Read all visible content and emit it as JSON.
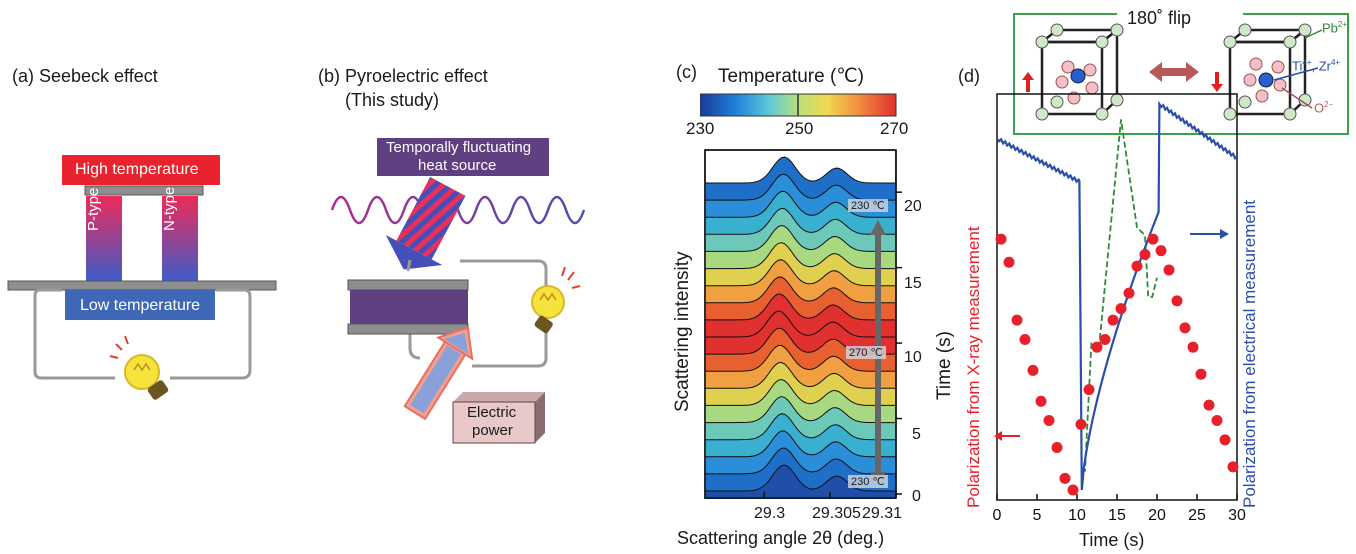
{
  "panel_a": {
    "title": "(a) Seebeck effect",
    "high": "High temperature",
    "low": "Low temperature",
    "p_type": "P-type",
    "n_type": "N-type"
  },
  "panel_b": {
    "title_line1": "(b) Pyroelectric effect",
    "title_line2": "(This study)",
    "heat_line1": "Temporally fluctuating",
    "heat_line2": "heat source",
    "power_line1": "Electric",
    "power_line2": "power"
  },
  "panel_c": {
    "tag": "(c)",
    "colorbar_title": "Temperature (℃)",
    "colorbar_ticks": [
      "230",
      "250",
      "270"
    ],
    "ylabel": "Scattering intensity",
    "xlabel": "Scattering angle 2θ (deg.)",
    "x_ticks": [
      "29.3",
      "29.305",
      "29.31"
    ],
    "time_label": "Time (s)",
    "time_ticks": [
      "0",
      "5",
      "10",
      "15",
      "20"
    ],
    "annot_top": "230 ℃",
    "annot_mid": "270 ℃",
    "annot_bot": "230 ℃"
  },
  "panel_d": {
    "tag": "(d)",
    "flip_label": "180˚ flip",
    "ion_pb": "Pb",
    "ion_pb_sup": "2+",
    "ion_ti": "Ti",
    "ion_ti_sup": "4+",
    "ion_sep": ", Zr",
    "ion_zr_sup": "4+",
    "ion_o": "O",
    "ion_o_sup": "2−",
    "ylabel_left": "Polarization from X-ray measurement",
    "ylabel_right": "Polarization from electrical measurement",
    "xlabel": "Time (s)",
    "x_ticks": [
      "0",
      "5",
      "10",
      "15",
      "20",
      "25",
      "30"
    ],
    "colors": {
      "xray": "#e8202a",
      "electrical": "#2a4fa8",
      "temperature": "#2f8a3a"
    }
  },
  "chart_data": [
    {
      "type": "line",
      "panel": "c",
      "x_range": [
        29.2955,
        29.31
      ],
      "time_range_s": [
        0,
        22
      ],
      "colorbar": {
        "min": 230,
        "max": 270,
        "ticks": [
          230,
          250,
          270
        ]
      },
      "profiles": 19,
      "peak_positions_deg": [
        29.3015,
        29.3055
      ]
    },
    {
      "type": "scatter",
      "panel": "d",
      "name": "Polarization from X-ray measurement",
      "x": [
        0.5,
        1.5,
        2.5,
        3.5,
        4.5,
        5.5,
        6.5,
        7.5,
        8.5,
        9.5,
        10.5,
        11.5,
        12.5,
        13.5,
        14.5,
        15.5,
        16.5,
        17.5,
        18.5,
        19.5,
        20.5,
        21.5,
        22.5,
        23.5,
        24.5,
        25.5,
        26.5,
        27.5,
        28.5,
        29.5
      ],
      "y": [
        0.87,
        0.81,
        0.66,
        0.61,
        0.53,
        0.45,
        0.4,
        0.33,
        0.25,
        0.22,
        0.39,
        0.48,
        0.59,
        0.61,
        0.66,
        0.69,
        0.73,
        0.8,
        0.83,
        0.87,
        0.84,
        0.79,
        0.71,
        0.64,
        0.59,
        0.52,
        0.44,
        0.4,
        0.35,
        0.28
      ],
      "xlim": [
        0,
        30
      ]
    },
    {
      "type": "line",
      "panel": "d",
      "name": "Polarization from electrical measurement",
      "x": [
        0,
        10.2,
        10.8,
        14,
        17,
        20.2,
        20.6,
        25,
        30
      ],
      "y": [
        1.0,
        0.88,
        0.0,
        0.55,
        0.75,
        0.9,
        1.0,
        0.95,
        0.9
      ]
    },
    {
      "type": "line",
      "panel": "d",
      "x": [
        10.5,
        11,
        11.8,
        12.8,
        15.5,
        17.5,
        18.5,
        18.9,
        19.4,
        20
      ],
      "y": [
        0.05,
        0.05,
        0.38,
        0.38,
        0.96,
        0.68,
        0.66,
        0.5,
        0.5,
        0.55
      ]
    }
  ]
}
